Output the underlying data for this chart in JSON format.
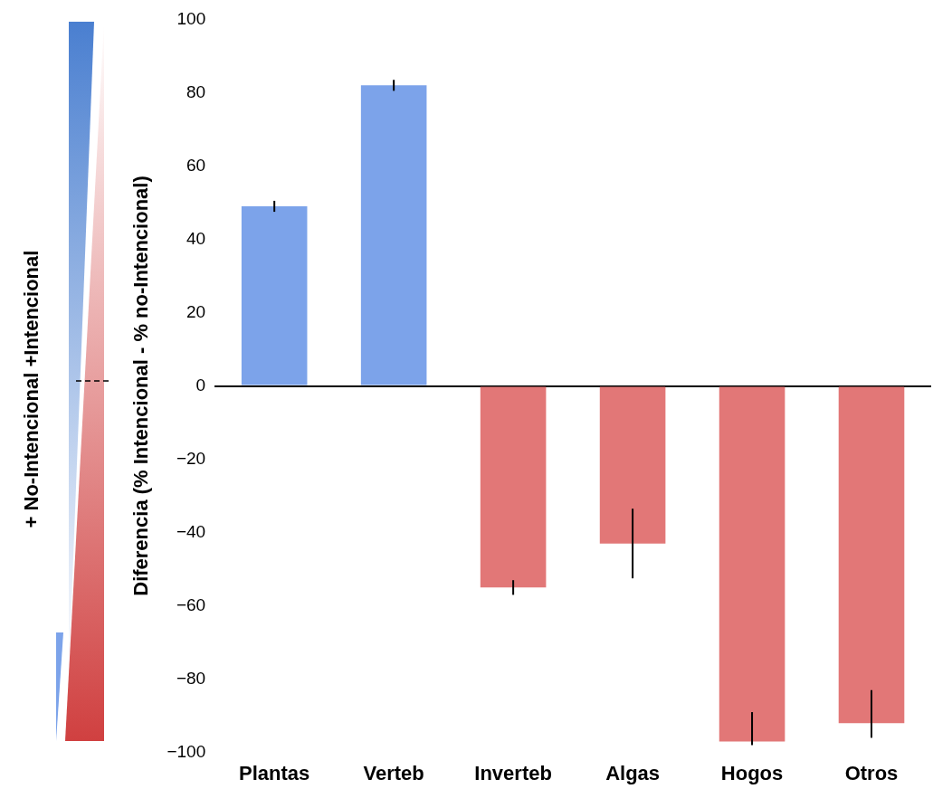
{
  "chart_data": {
    "type": "bar",
    "ylabel": "Diferencia (% Intencional - % no-Intencional)",
    "categories": [
      "Plantas",
      "Verteb",
      "Inverteb",
      "Algas",
      "Hogos",
      "Otros"
    ],
    "values": [
      49,
      82,
      -55,
      -43,
      -97,
      -92
    ],
    "errors": [
      1.5,
      1.5,
      2,
      9.5,
      [
        -98,
        -89
      ],
      [
        -96,
        -83
      ]
    ],
    "colors": [
      "#7ca3ea",
      "#7ca3ea",
      "#e27777",
      "#e27777",
      "#e27777",
      "#e27777"
    ],
    "ylim": [
      -100,
      100
    ],
    "yticks": [
      -100,
      -80,
      -60,
      -40,
      -20,
      0,
      20,
      40,
      60,
      80,
      100
    ],
    "annotations": [
      "+ No-Intencional +Intencional"
    ]
  }
}
